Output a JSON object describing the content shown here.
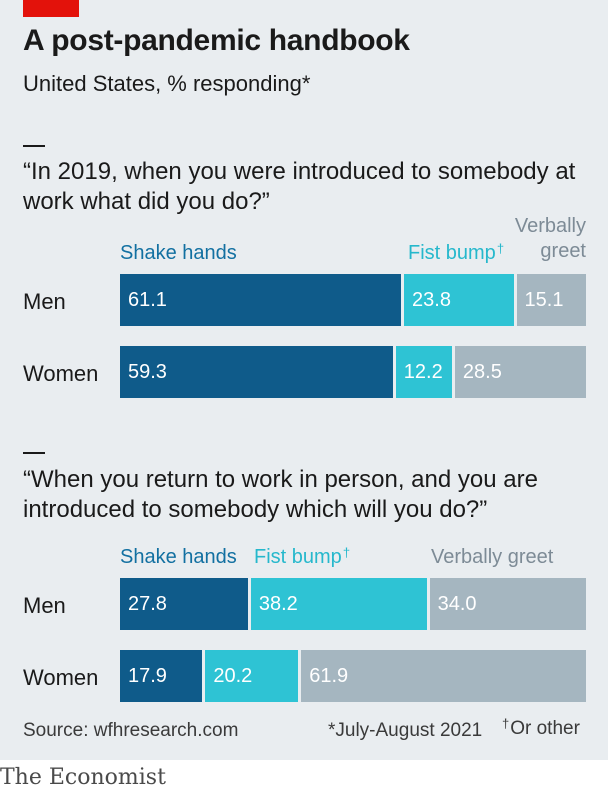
{
  "title": "A post-pandemic handbook",
  "subtitle": "United States, % responding*",
  "colors": {
    "shake": "#0f5b8a",
    "fist": "#2ec3d4",
    "verbal": "#a5b6c0",
    "accent": "#e3120b"
  },
  "chart_data": [
    {
      "type": "bar",
      "orientation": "horizontal",
      "stacked": true,
      "title": "“In 2019, when you were introduced to somebody at work what did you do?”",
      "categories": [
        "Men",
        "Women"
      ],
      "series": [
        {
          "name": "Shake hands",
          "values": [
            61.1,
            59.3
          ]
        },
        {
          "name": "Fist bump",
          "values": [
            23.8,
            12.2
          ]
        },
        {
          "name": "Verbally greet",
          "values": [
            15.1,
            28.5
          ]
        }
      ],
      "legend_labels": {
        "shake": "Shake hands",
        "fist": "Fist bump",
        "fist_mark": "†",
        "verbal_line1": "Verbally",
        "verbal_line2": "greet"
      },
      "xlim": [
        0,
        100
      ],
      "legend": "top"
    },
    {
      "type": "bar",
      "orientation": "horizontal",
      "stacked": true,
      "title": "“When you return to work in person, and you are introduced to somebody which will you do?”",
      "categories": [
        "Men",
        "Women"
      ],
      "series": [
        {
          "name": "Shake hands",
          "values": [
            27.8,
            17.9
          ]
        },
        {
          "name": "Fist bump",
          "values": [
            38.2,
            20.2
          ]
        },
        {
          "name": "Verbally greet",
          "values": [
            34.0,
            61.9
          ]
        }
      ],
      "legend_labels": {
        "shake": "Shake hands",
        "fist": "Fist bump",
        "fist_mark": "†",
        "verbal": "Verbally greet"
      },
      "xlim": [
        0,
        100
      ],
      "legend": "top"
    }
  ],
  "footer": {
    "source": "Source: wfhresearch.com",
    "note_date": "*July-August 2021",
    "note_other_mark": "†",
    "note_other": "Or other",
    "brand": "The Economist"
  }
}
